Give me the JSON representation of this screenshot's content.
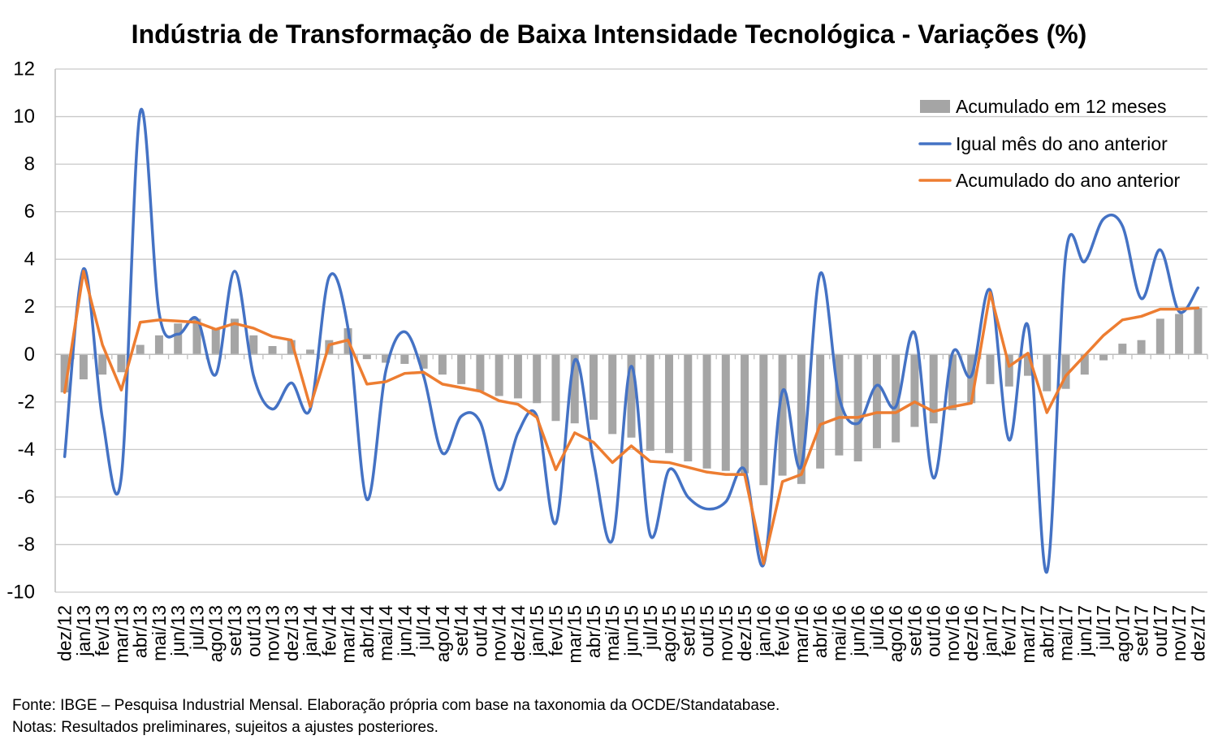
{
  "chart_data": {
    "type": "bar",
    "title": "Indústria de Transformação de Baixa Intensidade Tecnológica - Variações (%)",
    "ylim": [
      -10,
      12
    ],
    "yticks": [
      12,
      10,
      8,
      6,
      4,
      2,
      0,
      -2,
      -4,
      -6,
      -8,
      -10
    ],
    "grid": true,
    "legend": "top-right",
    "categories": [
      "dez/12",
      "jan/13",
      "fev/13",
      "mar/13",
      "abr/13",
      "mai/13",
      "jun/13",
      "jul/13",
      "ago/13",
      "set/13",
      "out/13",
      "nov/13",
      "dez/13",
      "jan/14",
      "fev/14",
      "mar/14",
      "abr/14",
      "mai/14",
      "jun/14",
      "jul/14",
      "ago/14",
      "set/14",
      "out/14",
      "nov/14",
      "dez/14",
      "jan/15",
      "fev/15",
      "mar/15",
      "abr/15",
      "mai/15",
      "jun/15",
      "jul/15",
      "ago/15",
      "set/15",
      "out/15",
      "nov/15",
      "dez/15",
      "jan/16",
      "fev/16",
      "mar/16",
      "abr/16",
      "mai/16",
      "jun/16",
      "jul/16",
      "ago/16",
      "set/16",
      "out/16",
      "nov/16",
      "dez/16",
      "jan/17",
      "fev/17",
      "mar/17",
      "abr/17",
      "mai/17",
      "jun/17",
      "jul/17",
      "ago/17",
      "set/17",
      "out/17",
      "nov/17",
      "dez/17"
    ],
    "series": [
      {
        "name": "Acumulado em 12 meses",
        "type": "bar",
        "color": "#A5A5A5",
        "values": [
          -1.6,
          -1.05,
          -0.85,
          -0.75,
          0.4,
          0.8,
          1.3,
          1.5,
          1.1,
          1.5,
          0.8,
          0.35,
          0.6,
          0.2,
          0.6,
          1.1,
          -0.2,
          -0.35,
          -0.4,
          -0.6,
          -0.85,
          -1.25,
          -1.55,
          -1.75,
          -1.85,
          -2.05,
          -2.8,
          -2.9,
          -2.75,
          -3.35,
          -3.5,
          -4.05,
          -4.15,
          -4.5,
          -4.8,
          -4.9,
          -5.0,
          -5.5,
          -5.1,
          -5.45,
          -4.8,
          -4.25,
          -4.5,
          -3.95,
          -3.7,
          -3.05,
          -2.9,
          -2.35,
          -2.05,
          -1.25,
          -1.35,
          -0.9,
          -1.55,
          -1.45,
          -0.85,
          -0.25,
          0.45,
          0.6,
          1.5,
          1.7,
          1.95
        ]
      },
      {
        "name": "Igual mês do ano anterior",
        "type": "line",
        "smooth": true,
        "color": "#4472C4",
        "values": [
          -4.3,
          3.6,
          -2.7,
          -5.15,
          10.2,
          1.75,
          0.85,
          1.5,
          -0.85,
          3.5,
          -0.9,
          -2.3,
          -1.2,
          -2.3,
          3.25,
          1.1,
          -6.1,
          -0.7,
          0.95,
          -0.9,
          -4.15,
          -2.6,
          -2.85,
          -5.7,
          -3.3,
          -2.6,
          -7.1,
          -0.25,
          -4.5,
          -7.8,
          -0.5,
          -7.6,
          -4.85,
          -6.0,
          -6.5,
          -6.2,
          -4.85,
          -8.85,
          -1.55,
          -4.7,
          3.4,
          -1.8,
          -2.9,
          -1.3,
          -2.2,
          0.9,
          -5.2,
          0.05,
          -0.9,
          2.7,
          -3.6,
          1.2,
          -9.15,
          4.2,
          3.9,
          5.7,
          5.4,
          2.35,
          4.4,
          1.8,
          2.8
        ]
      },
      {
        "name": "Acumulado do ano anterior",
        "type": "line",
        "color": "#ED7D31",
        "values": [
          -1.6,
          3.5,
          0.4,
          -1.5,
          1.35,
          1.45,
          1.4,
          1.35,
          1.05,
          1.3,
          1.1,
          0.75,
          0.6,
          -2.2,
          0.4,
          0.6,
          -1.25,
          -1.15,
          -0.8,
          -0.75,
          -1.25,
          -1.4,
          -1.55,
          -1.95,
          -2.1,
          -2.65,
          -4.85,
          -3.3,
          -3.7,
          -4.55,
          -3.85,
          -4.5,
          -4.55,
          -4.75,
          -4.95,
          -5.05,
          -5.05,
          -8.8,
          -5.35,
          -5.05,
          -2.95,
          -2.65,
          -2.65,
          -2.45,
          -2.45,
          -2.0,
          -2.4,
          -2.2,
          -2.05,
          2.6,
          -0.5,
          0.05,
          -2.45,
          -0.9,
          -0.05,
          0.8,
          1.45,
          1.6,
          1.9,
          1.9,
          1.95
        ]
      }
    ]
  },
  "footer": {
    "source": "Fonte: IBGE – Pesquisa Industrial Mensal. Elaboração própria com base na taxonomia da OCDE/Standatabase.",
    "notes": "Notas: Resultados preliminares, sujeitos a ajustes posteriores."
  }
}
